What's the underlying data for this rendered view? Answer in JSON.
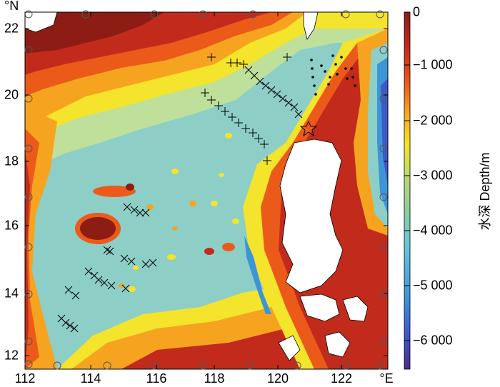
{
  "map": {
    "x_ticks": [
      "112",
      "114",
      "116",
      "118",
      "120",
      "122"
    ],
    "x_unit": "°E",
    "y_ticks": [
      "12",
      "14",
      "16",
      "18",
      "20",
      "22"
    ],
    "y_unit": "°N"
  },
  "colorbar": {
    "title": "水深 Depth/m",
    "ticks": [
      "0",
      "−1 000",
      "−2 000",
      "−3 000",
      "−4 000",
      "−5 000",
      "−6 000"
    ],
    "range": [
      -6500,
      0
    ],
    "colors": [
      "#4a2d8f",
      "#3f59c8",
      "#3d95d8",
      "#6dc6d8",
      "#8ecf9a",
      "#bfdb6a",
      "#f4e42b",
      "#f6a420",
      "#ec5a1a",
      "#c22b1c",
      "#8c1c14"
    ]
  },
  "legend_symbols": [
    "plus-station",
    "cross-station",
    "dot-station",
    "circle-station",
    "star-station"
  ]
}
